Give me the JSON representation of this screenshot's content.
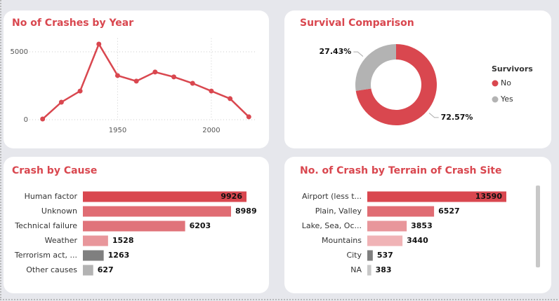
{
  "chart_data": [
    {
      "type": "line",
      "title": "No of Crashes by Year",
      "color": "#d9474f",
      "x": [
        1910,
        1920,
        1930,
        1940,
        1950,
        1960,
        1970,
        1980,
        1990,
        2000,
        2010,
        2020
      ],
      "values": [
        50,
        1290,
        2110,
        5570,
        3250,
        2840,
        3510,
        3150,
        2680,
        2110,
        1550,
        210
      ],
      "xlim": [
        1903,
        2024
      ],
      "ylim": [
        0,
        6000
      ],
      "xticks": [
        1950,
        2000
      ],
      "yticks": [
        0,
        5000
      ],
      "grid": true
    },
    {
      "type": "pie",
      "title": "Survival Comparison",
      "legend_title": "Survivors",
      "categories": [
        "No",
        "Yes"
      ],
      "values": [
        72.57,
        27.43
      ],
      "value_labels": [
        "72.57%",
        "27.43%"
      ],
      "colors": [
        "#d9474f",
        "#b3b3b3"
      ]
    },
    {
      "type": "barh",
      "title": "Crash by Cause",
      "categories": [
        "Human factor",
        "Unknown",
        "Technical failure",
        "Weather",
        "Terrorism act, ...",
        "Other causes"
      ],
      "values": [
        9926,
        8989,
        6203,
        1528,
        1263,
        627
      ],
      "colors": [
        "#d9474f",
        "#e06c73",
        "#e0737a",
        "#e8969b",
        "#7f7f7f",
        "#b3b3b3"
      ]
    },
    {
      "type": "barh",
      "title": "No. of Crash by Terrain of Crash Site",
      "categories": [
        "Airport (less t...",
        "Plain, Valley",
        "Lake, Sea, Oc...",
        "Mountains",
        "City",
        "NA"
      ],
      "values": [
        13590,
        6527,
        3853,
        3440,
        537,
        383
      ],
      "colors": [
        "#d9474f",
        "#e06c73",
        "#e8969b",
        "#f0b3b6",
        "#7f7f7f",
        "#c8c8c8"
      ]
    }
  ]
}
